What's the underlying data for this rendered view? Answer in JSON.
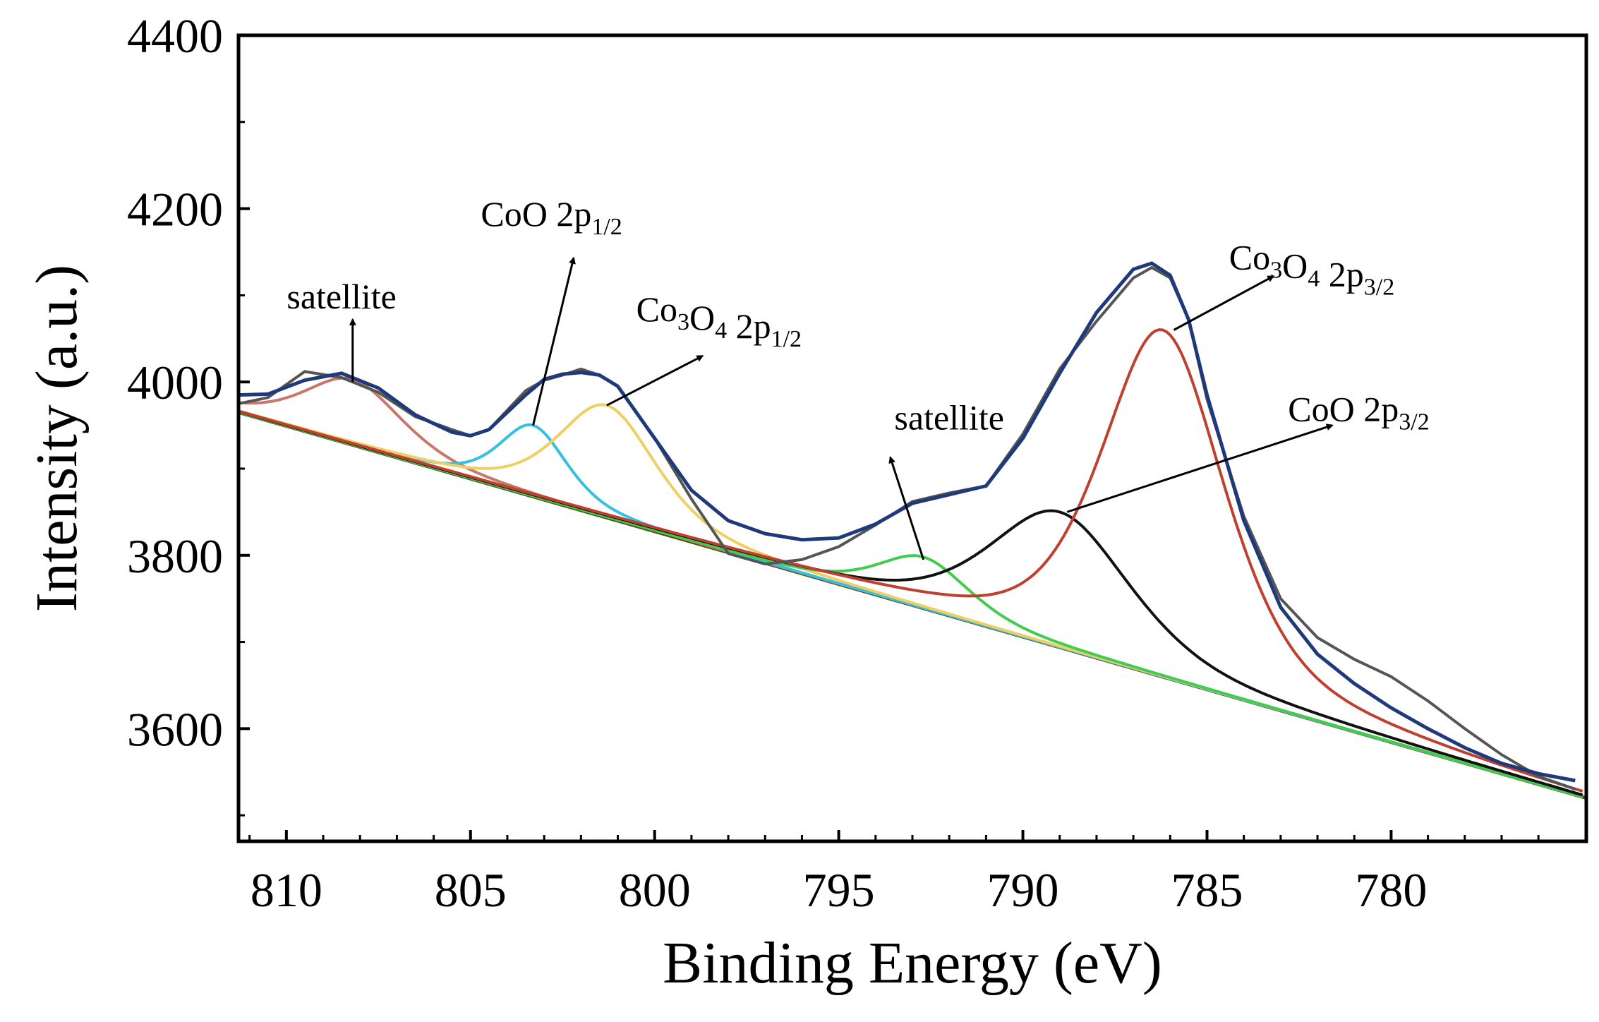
{
  "chart_data": {
    "type": "line",
    "xlabel": "Binding Energy (eV)",
    "ylabel": "Intensity (a.u.)",
    "xlim": [
      811.3,
      774.7
    ],
    "ylim": [
      3470,
      4400
    ],
    "x_reversed": true,
    "x_ticks": [
      810,
      805,
      800,
      795,
      790,
      785,
      780
    ],
    "y_ticks": [
      3600,
      3800,
      4000,
      4200,
      4400
    ],
    "grid": false,
    "legend": "none",
    "baseline": {
      "x1": 811.3,
      "y1": 3965,
      "x2": 774.7,
      "y2": 3520
    },
    "raw": {
      "color": "#555555",
      "x": [
        811.3,
        810.5,
        809.5,
        808.5,
        807.5,
        806.5,
        805.5,
        805.0,
        804.5,
        803.5,
        803.0,
        802.5,
        802.0,
        801.5,
        801.0,
        800.0,
        799.0,
        798.0,
        797.0,
        796.0,
        795.0,
        794.0,
        793.0,
        792.0,
        791.0,
        790.0,
        789.0,
        788.0,
        787.0,
        786.5,
        786.0,
        785.5,
        785.0,
        784.0,
        783.0,
        782.0,
        781.0,
        780.0,
        779.0,
        778.0,
        777.0,
        776.0,
        775.0
      ],
      "y": [
        3975,
        3982,
        4012,
        4005,
        3988,
        3960,
        3945,
        3938,
        3945,
        3990,
        4002,
        4008,
        4015,
        4008,
        3995,
        3935,
        3865,
        3802,
        3790,
        3795,
        3810,
        3835,
        3862,
        3872,
        3880,
        3940,
        4015,
        4070,
        4120,
        4132,
        4120,
        4072,
        3980,
        3845,
        3750,
        3705,
        3680,
        3660,
        3632,
        3600,
        3570,
        3545,
        3530
      ]
    },
    "envelope": {
      "color": "#1f3a7a",
      "x": [
        811.3,
        810.5,
        809.5,
        808.5,
        807.5,
        806.5,
        805.5,
        805.0,
        804.5,
        803.5,
        803.0,
        802.5,
        802.0,
        801.5,
        801.0,
        800.0,
        799.0,
        798.0,
        797.0,
        796.0,
        795.0,
        794.0,
        793.0,
        792.0,
        791.0,
        790.0,
        789.0,
        788.0,
        787.0,
        786.5,
        786.0,
        785.5,
        785.0,
        784.0,
        783.0,
        782.0,
        781.0,
        780.0,
        779.0,
        778.0,
        777.0,
        776.0,
        775.0
      ],
      "y": [
        3985,
        3986,
        4002,
        4010,
        3993,
        3962,
        3942,
        3938,
        3945,
        3985,
        4003,
        4009,
        4011,
        4008,
        3995,
        3935,
        3875,
        3840,
        3825,
        3818,
        3820,
        3836,
        3860,
        3870,
        3880,
        3935,
        4010,
        4080,
        4130,
        4137,
        4123,
        4072,
        3985,
        3840,
        3740,
        3686,
        3652,
        3624,
        3600,
        3578,
        3560,
        3548,
        3540
      ]
    },
    "series": [
      {
        "color": "#c87868",
        "peak_x": 808.2,
        "peak_y": 4003,
        "fwhm": 3.2
      },
      {
        "color": "#36c0df",
        "peak_x": 803.3,
        "peak_y": 3950,
        "fwhm": 2.2
      },
      {
        "color": "#f0cf62",
        "peak_x": 801.3,
        "peak_y": 3973,
        "fwhm": 3.2
      },
      {
        "color": "#41cc4e",
        "peak_x": 792.7,
        "peak_y": 3798,
        "fwhm": 3.0
      },
      {
        "color": "#111111",
        "peak_x": 789.0,
        "peak_y": 3850,
        "fwhm": 4.6
      },
      {
        "color": "#c04030",
        "peak_x": 786.2,
        "peak_y": 4060,
        "fwhm": 4.0
      }
    ],
    "annotations": [
      {
        "id": "sat-1",
        "base": "satellite",
        "sub": "",
        "tail": "",
        "sub2": "",
        "text_x": 808.5,
        "text_y": 4085,
        "arrow_from": [
          808.2,
          4000
        ],
        "arrow_to": [
          808.2,
          4072
        ],
        "anchor": "middle"
      },
      {
        "id": "coo-12",
        "base": "CoO 2p",
        "sub": "1/2",
        "tail": "",
        "sub2": "",
        "text_x": 802.8,
        "text_y": 4180,
        "arrow_from": [
          803.3,
          3950
        ],
        "arrow_to": [
          802.2,
          4143
        ],
        "anchor": "middle"
      },
      {
        "id": "co3o4-12",
        "base": "Co",
        "sub": "3",
        "tail": "O",
        "sub2": "4",
        "tail2": " 2p",
        "sub3": "1/2",
        "text_x": 800.5,
        "text_y": 4070,
        "arrow_from": [
          801.3,
          3973
        ],
        "arrow_to": [
          798.7,
          4030
        ],
        "anchor": "start"
      },
      {
        "id": "sat-2",
        "base": "satellite",
        "sub": "",
        "tail": "",
        "sub2": "",
        "text_x": 792.0,
        "text_y": 3945,
        "arrow_from": [
          792.7,
          3795
        ],
        "arrow_to": [
          793.6,
          3913
        ],
        "anchor": "middle"
      },
      {
        "id": "coo-32",
        "base": "CoO 2p",
        "sub": "3/2",
        "tail": "",
        "sub2": "",
        "text_x": 782.8,
        "text_y": 3955,
        "arrow_from": [
          788.8,
          3850
        ],
        "arrow_to": [
          781.6,
          3950
        ],
        "anchor": "start"
      },
      {
        "id": "co3o4-32",
        "base": "Co",
        "sub": "3",
        "tail": "O",
        "sub2": "4",
        "tail2": " 2p",
        "sub3": "3/2",
        "text_x": 784.4,
        "text_y": 4130,
        "arrow_from": [
          785.9,
          4060
        ],
        "arrow_to": [
          783.2,
          4122
        ],
        "anchor": "start"
      }
    ]
  }
}
